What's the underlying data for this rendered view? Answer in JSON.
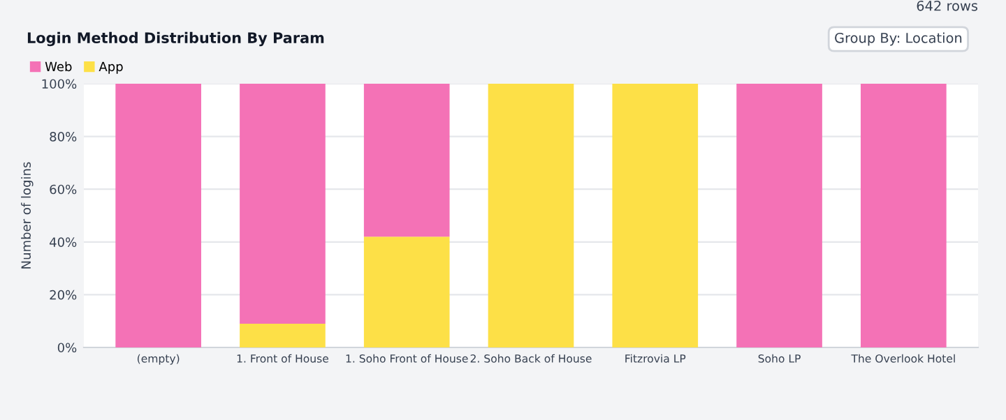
{
  "chart_data": {
    "type": "bar",
    "title": "Login Method Distribution By Param",
    "ylabel": "Number of logins",
    "annotations": [
      "642 rows",
      "Group By: Location"
    ],
    "categories": [
      "(empty)",
      "1. Front of House",
      "1. Soho Front of House",
      "2. Soho Back of House",
      "Fitzrovia LP",
      "Soho LP",
      "The Overlook Hotel"
    ],
    "series": [
      {
        "name": "App",
        "color": "#fde047",
        "values": [
          0,
          9,
          42,
          100,
          100,
          0,
          0
        ]
      },
      {
        "name": "Web",
        "color": "#f472b6",
        "values": [
          100,
          91,
          58,
          0,
          0,
          100,
          100
        ]
      }
    ],
    "stacked": true,
    "ylim": [
      0,
      100
    ],
    "yticks": [
      {
        "value": 0,
        "label": "0%"
      },
      {
        "value": 20,
        "label": "20%"
      },
      {
        "value": 40,
        "label": "40%"
      },
      {
        "value": 60,
        "label": "60%"
      },
      {
        "value": 80,
        "label": "80%"
      },
      {
        "value": 100,
        "label": "100%"
      }
    ],
    "grid": "y",
    "legend": "top left"
  }
}
